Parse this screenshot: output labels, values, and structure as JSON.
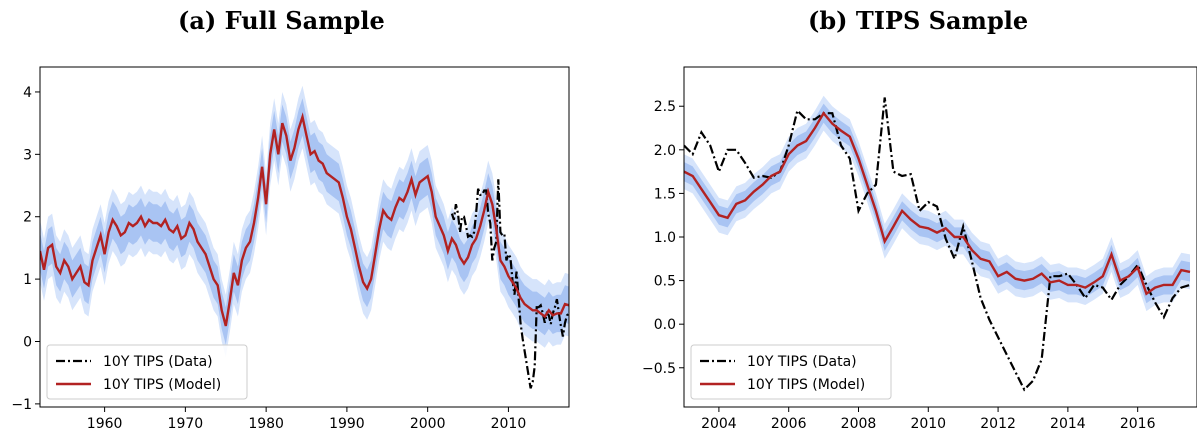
{
  "panels": {
    "a_title": "(a) Full Sample",
    "b_title": "(b) TIPS Sample"
  },
  "legend": {
    "data_label": "10Y TIPS (Data)",
    "model_label": "10Y TIPS (Model)"
  },
  "colors": {
    "model_line": "#b22222",
    "data_line": "#000000",
    "band_outer": "#d6e4fb",
    "band_inner": "#a9c4f3"
  },
  "chart_data": [
    {
      "type": "line",
      "title": "(a) Full Sample",
      "xlim": [
        1952,
        2017.5
      ],
      "ylim": [
        -1.05,
        4.4
      ],
      "xticks": [
        1960,
        1970,
        1980,
        1990,
        2000,
        2010
      ],
      "yticks": [
        -1,
        0,
        1,
        2,
        3,
        4
      ],
      "legend_position": "lower-left",
      "series": [
        {
          "name": "10Y TIPS (Model)",
          "style": "solid",
          "x": [
            1952.0,
            1952.5,
            1953.0,
            1953.5,
            1954.0,
            1954.5,
            1955.0,
            1955.5,
            1956.0,
            1956.5,
            1957.0,
            1957.5,
            1958.0,
            1958.5,
            1959.0,
            1959.5,
            1960.0,
            1960.5,
            1961.0,
            1961.5,
            1962.0,
            1962.5,
            1963.0,
            1963.5,
            1964.0,
            1964.5,
            1965.0,
            1965.5,
            1966.0,
            1966.5,
            1967.0,
            1967.5,
            1968.0,
            1968.5,
            1969.0,
            1969.5,
            1970.0,
            1970.5,
            1971.0,
            1971.5,
            1972.0,
            1972.5,
            1973.0,
            1973.5,
            1974.0,
            1974.5,
            1975.0,
            1975.5,
            1976.0,
            1976.5,
            1977.0,
            1977.5,
            1978.0,
            1978.5,
            1979.0,
            1979.5,
            1980.0,
            1980.5,
            1981.0,
            1981.5,
            1982.0,
            1982.5,
            1983.0,
            1983.5,
            1984.0,
            1984.5,
            1985.0,
            1985.5,
            1986.0,
            1986.5,
            1987.0,
            1987.5,
            1988.0,
            1988.5,
            1989.0,
            1989.5,
            1990.0,
            1990.5,
            1991.0,
            1991.5,
            1992.0,
            1992.5,
            1993.0,
            1993.5,
            1994.0,
            1994.5,
            1995.0,
            1995.5,
            1996.0,
            1996.5,
            1997.0,
            1997.5,
            1998.0,
            1998.5,
            1999.0,
            1999.5,
            2000.0,
            2000.5,
            2001.0,
            2001.5,
            2002.0,
            2002.5,
            2003.0,
            2003.5,
            2004.0,
            2004.5,
            2005.0,
            2005.5,
            2006.0,
            2006.5,
            2007.0,
            2007.5,
            2008.0,
            2008.5,
            2009.0,
            2009.5,
            2010.0,
            2010.5,
            2011.0,
            2011.5,
            2012.0,
            2012.5,
            2013.0,
            2013.5,
            2014.0,
            2014.5,
            2015.0,
            2015.5,
            2016.0,
            2016.5,
            2017.0,
            2017.5
          ],
          "y": [
            1.45,
            1.15,
            1.5,
            1.55,
            1.2,
            1.1,
            1.3,
            1.2,
            1.0,
            1.1,
            1.2,
            0.95,
            0.9,
            1.3,
            1.5,
            1.7,
            1.4,
            1.75,
            1.95,
            1.85,
            1.7,
            1.75,
            1.9,
            1.85,
            1.9,
            2.0,
            1.85,
            1.95,
            1.9,
            1.9,
            1.85,
            1.95,
            1.8,
            1.75,
            1.85,
            1.65,
            1.7,
            1.9,
            1.8,
            1.6,
            1.5,
            1.4,
            1.2,
            1.0,
            0.9,
            0.5,
            0.25,
            0.65,
            1.1,
            0.9,
            1.3,
            1.5,
            1.6,
            1.9,
            2.3,
            2.8,
            2.2,
            3.0,
            3.4,
            3.0,
            3.5,
            3.3,
            2.9,
            3.1,
            3.4,
            3.6,
            3.3,
            3.0,
            3.05,
            2.9,
            2.85,
            2.7,
            2.65,
            2.6,
            2.55,
            2.3,
            2.0,
            1.8,
            1.5,
            1.2,
            0.95,
            0.85,
            1.0,
            1.4,
            1.8,
            2.1,
            2.0,
            1.95,
            2.15,
            2.3,
            2.25,
            2.4,
            2.6,
            2.35,
            2.55,
            2.6,
            2.65,
            2.4,
            2.0,
            1.85,
            1.7,
            1.45,
            1.65,
            1.55,
            1.35,
            1.25,
            1.35,
            1.55,
            1.65,
            1.85,
            2.1,
            2.4,
            2.2,
            1.8,
            1.3,
            1.2,
            1.05,
            0.95,
            0.85,
            0.7,
            0.6,
            0.55,
            0.5,
            0.5,
            0.45,
            0.4,
            0.5,
            0.42,
            0.45,
            0.45,
            0.6,
            0.58
          ]
        },
        {
          "name": "10Y TIPS (Data)",
          "style": "dashdot",
          "x": [
            2003.0,
            2003.25,
            2003.5,
            2003.75,
            2004.0,
            2004.25,
            2004.5,
            2004.75,
            2005.0,
            2005.25,
            2005.5,
            2005.75,
            2006.0,
            2006.25,
            2006.5,
            2006.75,
            2007.0,
            2007.25,
            2007.5,
            2007.75,
            2008.0,
            2008.25,
            2008.5,
            2008.75,
            2009.0,
            2009.25,
            2009.5,
            2009.75,
            2010.0,
            2010.25,
            2010.5,
            2010.75,
            2011.0,
            2011.25,
            2011.5,
            2011.75,
            2012.0,
            2012.25,
            2012.5,
            2012.75,
            2013.0,
            2013.25,
            2013.5,
            2013.75,
            2014.0,
            2014.25,
            2014.5,
            2014.75,
            2015.0,
            2015.25,
            2015.5,
            2015.75,
            2016.0,
            2016.25,
            2016.5,
            2016.75,
            2017.0,
            2017.25,
            2017.5
          ],
          "y": [
            2.05,
            1.95,
            2.2,
            2.05,
            1.75,
            2.0,
            2.0,
            1.85,
            1.68,
            1.7,
            1.68,
            1.75,
            2.05,
            2.45,
            2.35,
            2.35,
            2.42,
            2.42,
            2.05,
            1.9,
            1.3,
            1.5,
            1.6,
            2.6,
            1.75,
            1.7,
            1.72,
            1.3,
            1.4,
            1.35,
            0.98,
            0.75,
            1.12,
            0.72,
            0.3,
            0.05,
            -0.15,
            -0.35,
            -0.55,
            -0.75,
            -0.65,
            -0.4,
            0.55,
            0.55,
            0.58,
            0.45,
            0.3,
            0.45,
            0.42,
            0.28,
            0.45,
            0.55,
            0.68,
            0.45,
            0.25,
            0.08,
            0.3,
            0.42,
            0.45
          ]
        }
      ]
    },
    {
      "type": "line",
      "title": "(b) TIPS Sample",
      "xlim": [
        2003,
        2017.7
      ],
      "ylim": [
        -0.95,
        2.95
      ],
      "xticks": [
        2004,
        2006,
        2008,
        2010,
        2012,
        2014,
        2016
      ],
      "yticks": [
        -0.5,
        0.0,
        0.5,
        1.0,
        1.5,
        2.0,
        2.5
      ],
      "legend_position": "lower-left",
      "series": [
        {
          "name": "10Y TIPS (Model)",
          "style": "solid",
          "x": [
            2003.0,
            2003.25,
            2003.5,
            2003.75,
            2004.0,
            2004.25,
            2004.5,
            2004.75,
            2005.0,
            2005.25,
            2005.5,
            2005.75,
            2006.0,
            2006.25,
            2006.5,
            2006.75,
            2007.0,
            2007.25,
            2007.5,
            2007.75,
            2008.0,
            2008.25,
            2008.5,
            2008.75,
            2009.0,
            2009.25,
            2009.5,
            2009.75,
            2010.0,
            2010.25,
            2010.5,
            2010.75,
            2011.0,
            2011.25,
            2011.5,
            2011.75,
            2012.0,
            2012.25,
            2012.5,
            2012.75,
            2013.0,
            2013.25,
            2013.5,
            2013.75,
            2014.0,
            2014.25,
            2014.5,
            2014.75,
            2015.0,
            2015.25,
            2015.5,
            2015.75,
            2016.0,
            2016.25,
            2016.5,
            2016.75,
            2017.0,
            2017.25,
            2017.5
          ],
          "y": [
            1.75,
            1.7,
            1.55,
            1.4,
            1.25,
            1.22,
            1.38,
            1.42,
            1.52,
            1.6,
            1.7,
            1.75,
            1.95,
            2.05,
            2.1,
            2.25,
            2.42,
            2.3,
            2.22,
            2.15,
            1.9,
            1.6,
            1.3,
            0.95,
            1.12,
            1.3,
            1.2,
            1.12,
            1.1,
            1.05,
            1.1,
            1.0,
            1.0,
            0.85,
            0.75,
            0.72,
            0.55,
            0.6,
            0.52,
            0.5,
            0.52,
            0.58,
            0.48,
            0.5,
            0.45,
            0.45,
            0.42,
            0.48,
            0.55,
            0.8,
            0.5,
            0.55,
            0.65,
            0.35,
            0.42,
            0.45,
            0.45,
            0.62,
            0.6
          ]
        },
        {
          "name": "10Y TIPS (Data)",
          "style": "dashdot",
          "x": [
            2003.0,
            2003.25,
            2003.5,
            2003.75,
            2004.0,
            2004.25,
            2004.5,
            2004.75,
            2005.0,
            2005.25,
            2005.5,
            2005.75,
            2006.0,
            2006.25,
            2006.5,
            2006.75,
            2007.0,
            2007.25,
            2007.5,
            2007.75,
            2008.0,
            2008.25,
            2008.5,
            2008.75,
            2009.0,
            2009.25,
            2009.5,
            2009.75,
            2010.0,
            2010.25,
            2010.5,
            2010.75,
            2011.0,
            2011.25,
            2011.5,
            2011.75,
            2012.0,
            2012.25,
            2012.5,
            2012.75,
            2013.0,
            2013.25,
            2013.5,
            2013.75,
            2014.0,
            2014.25,
            2014.5,
            2014.75,
            2015.0,
            2015.25,
            2015.5,
            2015.75,
            2016.0,
            2016.25,
            2016.5,
            2016.75,
            2017.0,
            2017.25,
            2017.5
          ],
          "y": [
            2.05,
            1.95,
            2.2,
            2.05,
            1.75,
            2.0,
            2.0,
            1.85,
            1.68,
            1.7,
            1.68,
            1.75,
            2.05,
            2.45,
            2.35,
            2.35,
            2.42,
            2.42,
            2.05,
            1.9,
            1.3,
            1.5,
            1.6,
            2.6,
            1.75,
            1.7,
            1.72,
            1.3,
            1.4,
            1.35,
            0.98,
            0.75,
            1.12,
            0.72,
            0.3,
            0.05,
            -0.15,
            -0.35,
            -0.55,
            -0.75,
            -0.65,
            -0.4,
            0.55,
            0.55,
            0.58,
            0.45,
            0.3,
            0.45,
            0.42,
            0.28,
            0.45,
            0.55,
            0.68,
            0.45,
            0.25,
            0.08,
            0.3,
            0.42,
            0.45
          ]
        }
      ]
    }
  ]
}
